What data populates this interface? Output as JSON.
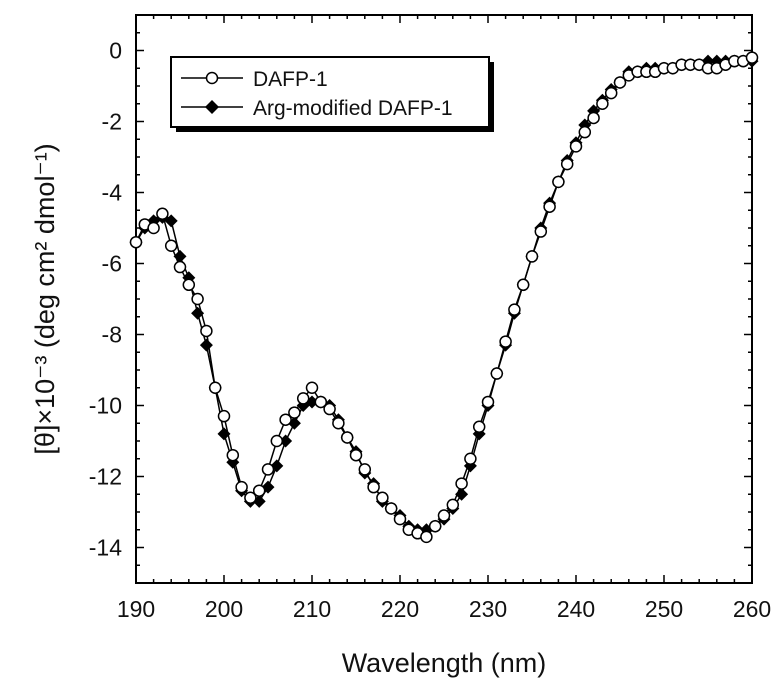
{
  "chart_data": {
    "type": "line",
    "xlabel": "Wavelength (nm)",
    "ylabel": "[θ]×10⁻³ (deg cm² dmol⁻¹)",
    "xlim": [
      190,
      260
    ],
    "ylim": [
      -15,
      1
    ],
    "xticks": [
      190,
      200,
      210,
      220,
      230,
      240,
      250,
      260
    ],
    "yticks": [
      0,
      -2,
      -4,
      -6,
      -8,
      -10,
      -12,
      -14
    ],
    "grid": false,
    "legend_position": "top-left",
    "series": [
      {
        "name": "DAFP-1",
        "marker": "open-circle",
        "color": "#000000",
        "x": [
          190,
          191,
          192,
          193,
          194,
          195,
          196,
          197,
          198,
          199,
          200,
          201,
          202,
          203,
          204,
          205,
          206,
          207,
          208,
          209,
          210,
          211,
          212,
          213,
          214,
          215,
          216,
          217,
          218,
          219,
          220,
          221,
          222,
          223,
          224,
          225,
          226,
          227,
          228,
          229,
          230,
          231,
          232,
          233,
          234,
          235,
          236,
          237,
          238,
          239,
          240,
          241,
          242,
          243,
          244,
          245,
          246,
          247,
          248,
          249,
          250,
          251,
          252,
          253,
          254,
          255,
          256,
          257,
          258,
          259,
          260
        ],
        "values": [
          -5.4,
          -4.9,
          -5.0,
          -4.6,
          -5.5,
          -6.1,
          -6.6,
          -7.0,
          -7.9,
          -9.5,
          -10.3,
          -11.4,
          -12.3,
          -12.6,
          -12.4,
          -11.8,
          -11.0,
          -10.4,
          -10.2,
          -9.8,
          -9.5,
          -9.9,
          -10.1,
          -10.5,
          -10.9,
          -11.4,
          -11.8,
          -12.3,
          -12.6,
          -12.9,
          -13.2,
          -13.5,
          -13.6,
          -13.7,
          -13.4,
          -13.1,
          -12.8,
          -12.2,
          -11.5,
          -10.6,
          -9.9,
          -9.1,
          -8.2,
          -7.3,
          -6.6,
          -5.8,
          -5.1,
          -4.4,
          -3.7,
          -3.2,
          -2.7,
          -2.3,
          -1.9,
          -1.5,
          -1.2,
          -0.9,
          -0.7,
          -0.6,
          -0.6,
          -0.6,
          -0.5,
          -0.5,
          -0.4,
          -0.4,
          -0.4,
          -0.5,
          -0.5,
          -0.4,
          -0.3,
          -0.3,
          -0.2
        ]
      },
      {
        "name": "Arg-modified DAFP-1",
        "marker": "filled-diamond",
        "color": "#000000",
        "x": [
          190,
          191,
          192,
          193,
          194,
          195,
          196,
          197,
          198,
          199,
          200,
          201,
          202,
          203,
          204,
          205,
          206,
          207,
          208,
          209,
          210,
          211,
          212,
          213,
          214,
          215,
          216,
          217,
          218,
          219,
          220,
          221,
          222,
          223,
          224,
          225,
          226,
          227,
          228,
          229,
          230,
          231,
          232,
          233,
          234,
          235,
          236,
          237,
          238,
          239,
          240,
          241,
          242,
          243,
          244,
          245,
          246,
          247,
          248,
          249,
          250,
          251,
          252,
          253,
          254,
          255,
          256,
          257,
          258,
          259,
          260
        ],
        "values": [
          -5.4,
          -5.0,
          -4.8,
          -4.7,
          -4.8,
          -5.8,
          -6.4,
          -7.4,
          -8.3,
          -9.5,
          -10.8,
          -11.6,
          -12.4,
          -12.7,
          -12.7,
          -12.3,
          -11.7,
          -11.0,
          -10.5,
          -10.0,
          -9.9,
          -9.9,
          -10.0,
          -10.4,
          -10.9,
          -11.3,
          -11.9,
          -12.2,
          -12.7,
          -12.9,
          -13.1,
          -13.4,
          -13.5,
          -13.5,
          -13.4,
          -13.2,
          -12.9,
          -12.5,
          -11.7,
          -10.8,
          -10.0,
          -9.1,
          -8.3,
          -7.4,
          -6.6,
          -5.8,
          -5.0,
          -4.3,
          -3.7,
          -3.1,
          -2.6,
          -2.1,
          -1.7,
          -1.4,
          -1.1,
          -0.9,
          -0.6,
          -0.6,
          -0.5,
          -0.5,
          -0.5,
          -0.5,
          -0.4,
          -0.4,
          -0.4,
          -0.3,
          -0.3,
          -0.3,
          -0.3,
          -0.3,
          -0.3
        ]
      }
    ]
  }
}
